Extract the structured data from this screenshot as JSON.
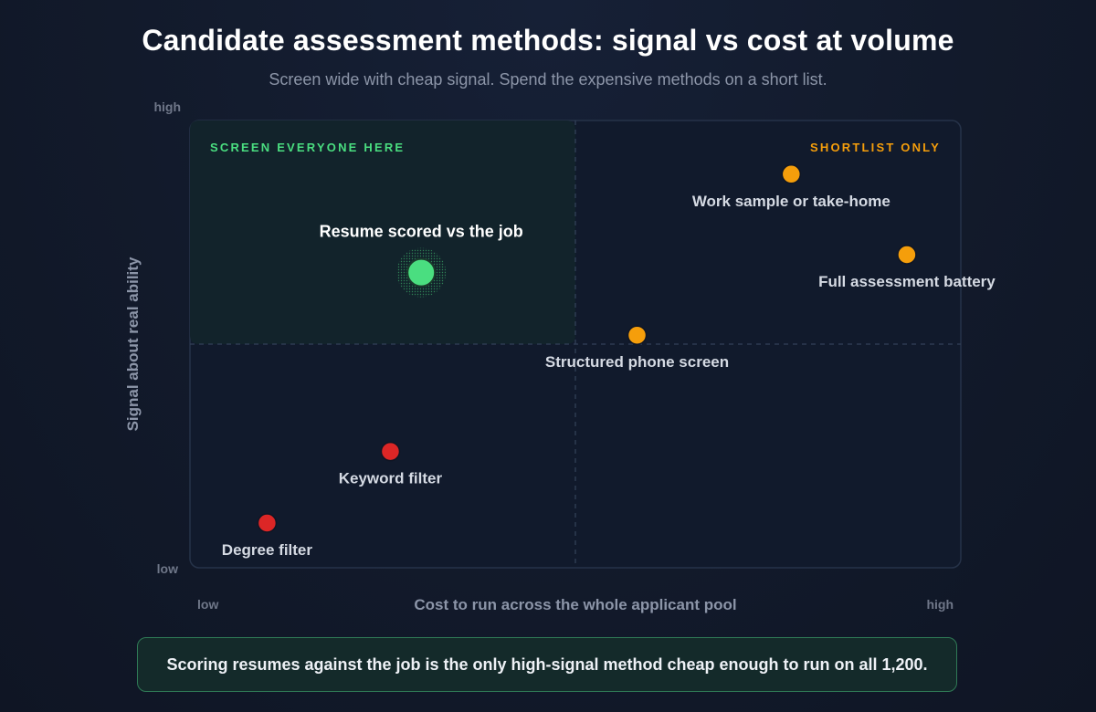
{
  "title": "Candidate assessment methods: signal vs cost at volume",
  "subtitle": "Screen wide with cheap signal. Spend the expensive methods on a short list.",
  "callout": "Scoring resumes against the job is the only high-signal method cheap enough to run on all 1,200.",
  "colors": {
    "background": "#121a2b",
    "plot_bg": "#111a2c",
    "quadrant_highlight": "#12232b",
    "green": "#4ade80",
    "orange": "#f59e0b",
    "red": "#dc2626",
    "green_label": "#4ade80",
    "orange_label": "#f59e0b",
    "point_label": "#d5dae3",
    "axis_text": "#8c95a8",
    "tick_text": "#6f7789"
  },
  "chart_data": {
    "type": "scatter",
    "xlabel": "Cost to run across the whole applicant pool",
    "ylabel": "Signal about real ability",
    "x_ticks": {
      "low": "low",
      "high": "high"
    },
    "y_ticks": {
      "low": "low",
      "high": "high"
    },
    "xlim": [
      0,
      1
    ],
    "ylim": [
      0,
      1
    ],
    "quadrant_split": {
      "x": 0.5,
      "y": 0.5
    },
    "quadrant_labels": {
      "top_left": "SCREEN EVERYONE HERE",
      "top_right": "SHORTLIST ONLY"
    },
    "points": [
      {
        "label": "Resume scored vs the job",
        "x": 0.3,
        "y": 0.66,
        "group": "highlight",
        "label_position": "above"
      },
      {
        "label": "Work sample or take-home",
        "x": 0.78,
        "y": 0.88,
        "group": "expensive",
        "label_position": "below"
      },
      {
        "label": "Full assessment battery",
        "x": 0.93,
        "y": 0.7,
        "group": "expensive",
        "label_position": "below"
      },
      {
        "label": "Structured phone screen",
        "x": 0.58,
        "y": 0.52,
        "group": "expensive",
        "label_position": "below"
      },
      {
        "label": "Keyword filter",
        "x": 0.26,
        "y": 0.26,
        "group": "weak",
        "label_position": "below"
      },
      {
        "label": "Degree filter",
        "x": 0.1,
        "y": 0.1,
        "group": "weak",
        "label_position": "below"
      }
    ]
  }
}
